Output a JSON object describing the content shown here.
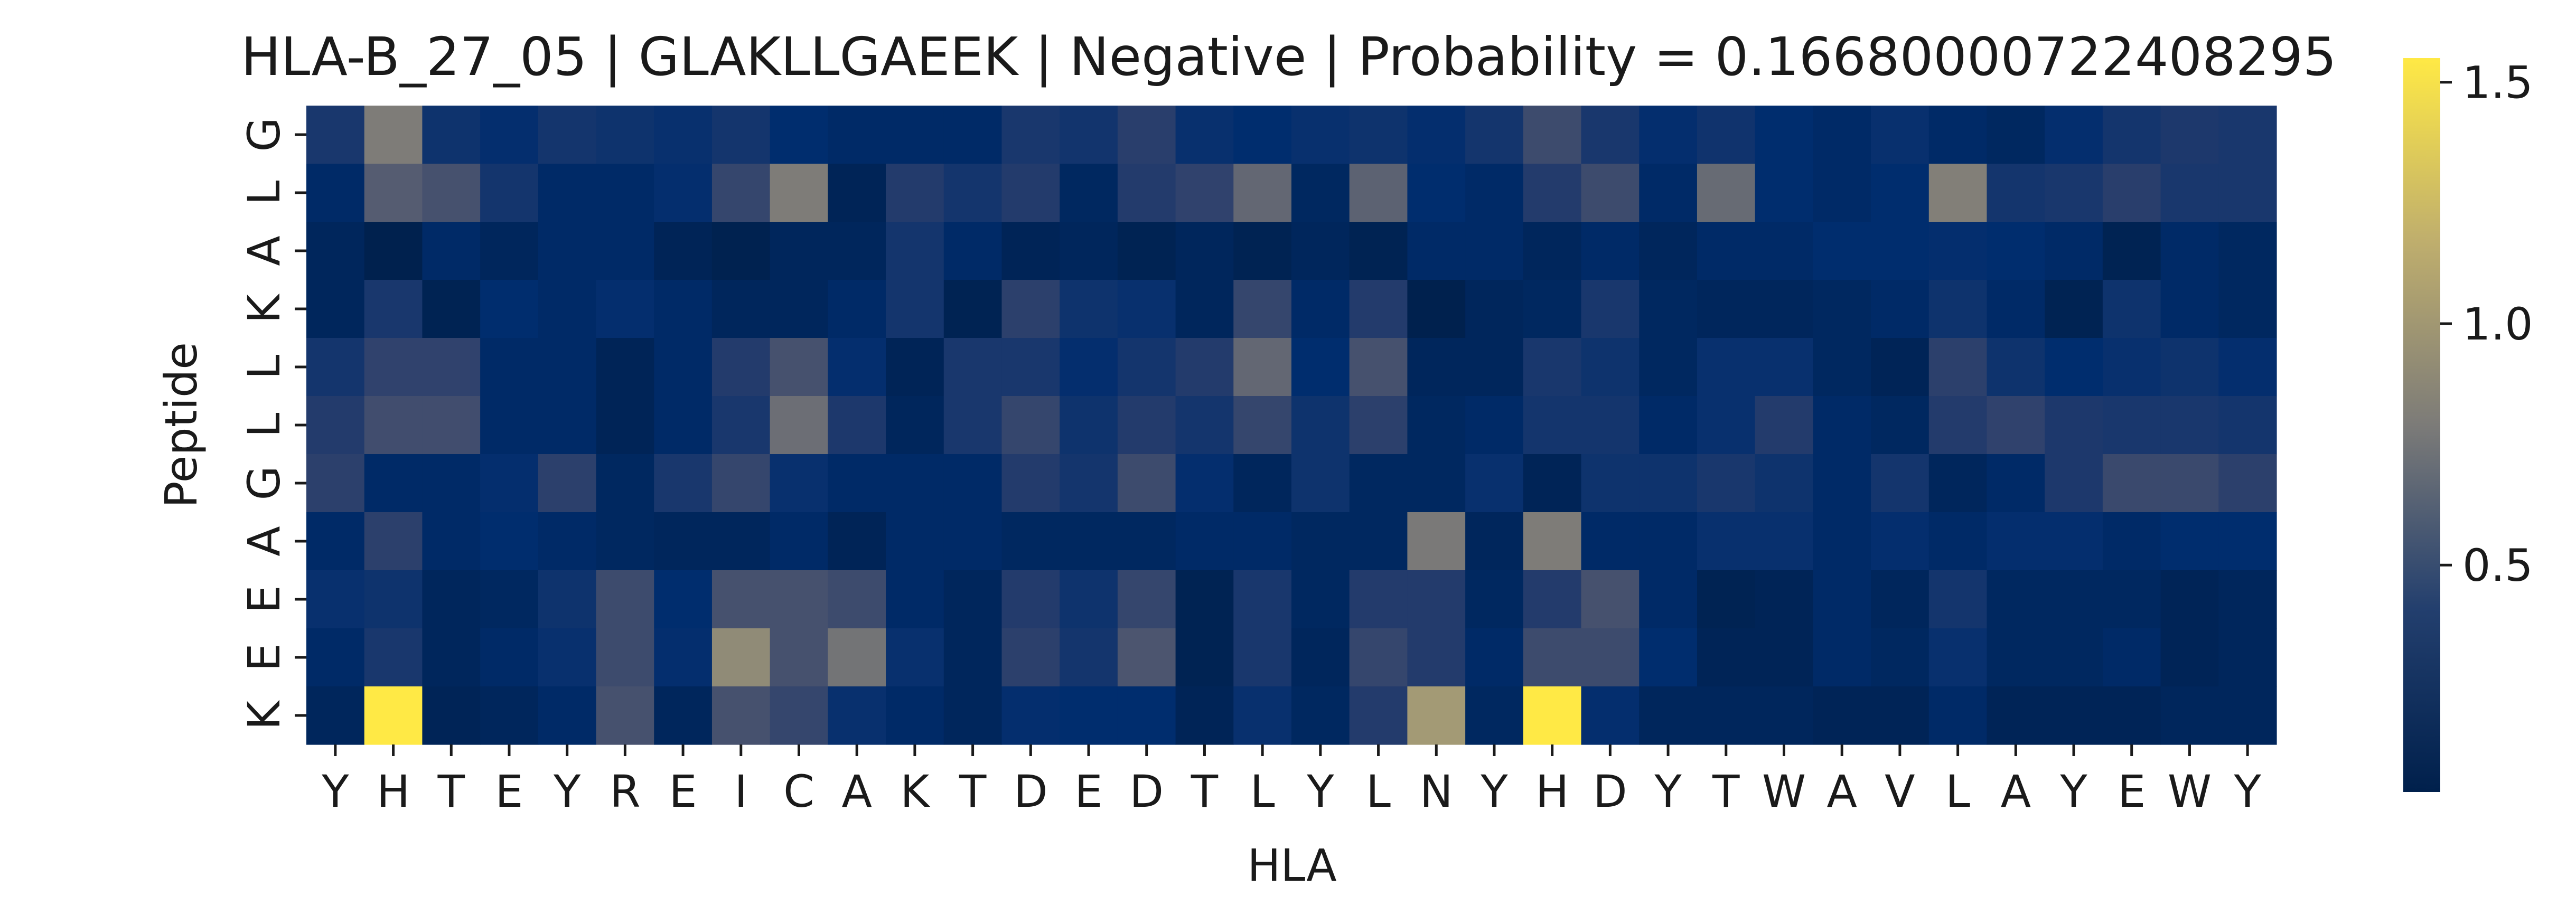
{
  "chart_data": {
    "type": "heatmap",
    "title": "HLA-B_27_05 | GLAKLLGAEEK | Negative | Probability = 0.16680000722408295",
    "xlabel": "HLA",
    "ylabel": "Peptide",
    "x_categories": [
      "Y",
      "H",
      "T",
      "E",
      "Y",
      "R",
      "E",
      "I",
      "C",
      "A",
      "K",
      "T",
      "D",
      "E",
      "D",
      "T",
      "L",
      "Y",
      "L",
      "N",
      "Y",
      "H",
      "D",
      "Y",
      "T",
      "W",
      "A",
      "V",
      "L",
      "A",
      "Y",
      "E",
      "W",
      "Y"
    ],
    "y_categories": [
      "G",
      "L",
      "A",
      "K",
      "L",
      "L",
      "G",
      "A",
      "E",
      "E",
      "K"
    ],
    "colormap": "cividis",
    "vmin": 0.03,
    "vmax": 1.55,
    "colorbar_ticks": [
      {
        "value": 0.5,
        "label": "0.5"
      },
      {
        "value": 1.0,
        "label": "1.0"
      },
      {
        "value": 1.5,
        "label": "1.5"
      }
    ],
    "values": [
      [
        0.3,
        0.8,
        0.25,
        0.2,
        0.28,
        0.25,
        0.22,
        0.28,
        0.18,
        0.15,
        0.15,
        0.15,
        0.3,
        0.27,
        0.38,
        0.22,
        0.18,
        0.22,
        0.25,
        0.2,
        0.28,
        0.5,
        0.3,
        0.2,
        0.26,
        0.18,
        0.15,
        0.22,
        0.15,
        0.12,
        0.2,
        0.28,
        0.32,
        0.3
      ],
      [
        0.15,
        0.62,
        0.55,
        0.28,
        0.15,
        0.15,
        0.2,
        0.45,
        0.8,
        0.08,
        0.35,
        0.28,
        0.35,
        0.12,
        0.35,
        0.42,
        0.68,
        0.12,
        0.65,
        0.18,
        0.15,
        0.35,
        0.5,
        0.15,
        0.7,
        0.18,
        0.15,
        0.18,
        0.82,
        0.28,
        0.3,
        0.38,
        0.3,
        0.3
      ],
      [
        0.1,
        0.04,
        0.15,
        0.1,
        0.15,
        0.15,
        0.08,
        0.05,
        0.1,
        0.1,
        0.28,
        0.15,
        0.08,
        0.1,
        0.06,
        0.1,
        0.06,
        0.1,
        0.06,
        0.15,
        0.15,
        0.1,
        0.15,
        0.1,
        0.15,
        0.15,
        0.18,
        0.18,
        0.2,
        0.18,
        0.15,
        0.06,
        0.15,
        0.12
      ],
      [
        0.1,
        0.3,
        0.06,
        0.18,
        0.15,
        0.2,
        0.15,
        0.1,
        0.1,
        0.15,
        0.28,
        0.06,
        0.4,
        0.25,
        0.22,
        0.1,
        0.45,
        0.15,
        0.35,
        0.04,
        0.1,
        0.12,
        0.3,
        0.12,
        0.1,
        0.1,
        0.12,
        0.15,
        0.25,
        0.15,
        0.06,
        0.25,
        0.15,
        0.12
      ],
      [
        0.28,
        0.42,
        0.42,
        0.15,
        0.15,
        0.08,
        0.15,
        0.35,
        0.55,
        0.2,
        0.08,
        0.3,
        0.3,
        0.2,
        0.28,
        0.35,
        0.68,
        0.18,
        0.55,
        0.1,
        0.1,
        0.3,
        0.25,
        0.12,
        0.22,
        0.22,
        0.12,
        0.08,
        0.4,
        0.25,
        0.18,
        0.22,
        0.25,
        0.2
      ],
      [
        0.35,
        0.52,
        0.52,
        0.15,
        0.15,
        0.08,
        0.15,
        0.3,
        0.72,
        0.32,
        0.1,
        0.3,
        0.45,
        0.25,
        0.35,
        0.28,
        0.45,
        0.25,
        0.4,
        0.12,
        0.15,
        0.28,
        0.28,
        0.15,
        0.22,
        0.35,
        0.15,
        0.12,
        0.35,
        0.42,
        0.32,
        0.3,
        0.3,
        0.28
      ],
      [
        0.4,
        0.15,
        0.15,
        0.2,
        0.4,
        0.12,
        0.3,
        0.45,
        0.22,
        0.15,
        0.15,
        0.15,
        0.35,
        0.28,
        0.5,
        0.2,
        0.1,
        0.25,
        0.12,
        0.12,
        0.22,
        0.08,
        0.25,
        0.25,
        0.3,
        0.25,
        0.15,
        0.28,
        0.1,
        0.15,
        0.32,
        0.48,
        0.48,
        0.4
      ],
      [
        0.15,
        0.4,
        0.15,
        0.18,
        0.15,
        0.12,
        0.1,
        0.1,
        0.15,
        0.08,
        0.15,
        0.15,
        0.12,
        0.12,
        0.12,
        0.15,
        0.15,
        0.12,
        0.12,
        0.78,
        0.1,
        0.8,
        0.15,
        0.15,
        0.22,
        0.22,
        0.15,
        0.2,
        0.15,
        0.2,
        0.2,
        0.15,
        0.18,
        0.18
      ],
      [
        0.22,
        0.25,
        0.1,
        0.12,
        0.25,
        0.5,
        0.18,
        0.55,
        0.55,
        0.5,
        0.15,
        0.1,
        0.35,
        0.25,
        0.45,
        0.06,
        0.3,
        0.12,
        0.35,
        0.35,
        0.12,
        0.35,
        0.55,
        0.15,
        0.06,
        0.08,
        0.15,
        0.1,
        0.28,
        0.12,
        0.12,
        0.12,
        0.08,
        0.1
      ],
      [
        0.15,
        0.3,
        0.1,
        0.15,
        0.22,
        0.5,
        0.2,
        0.9,
        0.55,
        0.75,
        0.22,
        0.1,
        0.4,
        0.28,
        0.58,
        0.06,
        0.3,
        0.1,
        0.45,
        0.35,
        0.15,
        0.5,
        0.5,
        0.18,
        0.08,
        0.08,
        0.15,
        0.12,
        0.22,
        0.12,
        0.12,
        0.15,
        0.08,
        0.1
      ],
      [
        0.1,
        1.55,
        0.08,
        0.1,
        0.15,
        0.55,
        0.1,
        0.55,
        0.45,
        0.22,
        0.15,
        0.1,
        0.2,
        0.18,
        0.18,
        0.08,
        0.22,
        0.12,
        0.35,
        1.0,
        0.12,
        1.55,
        0.2,
        0.1,
        0.1,
        0.1,
        0.08,
        0.08,
        0.15,
        0.08,
        0.08,
        0.08,
        0.1,
        0.1
      ]
    ]
  }
}
